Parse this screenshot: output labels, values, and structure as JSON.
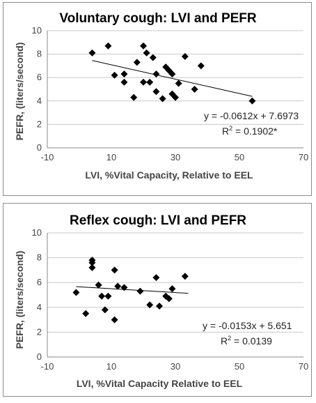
{
  "chart_data": [
    {
      "type": "scatter",
      "title": "Voluntary cough: LVI and PEFR",
      "xlabel": "LVI, %Vital Capacity, Relative to EEL",
      "ylabel": "PEFR, (liters/second)",
      "xlim": [
        -10,
        70
      ],
      "ylim": [
        0,
        10
      ],
      "xticks": [
        "-10",
        "10",
        "30",
        "50",
        "70"
      ],
      "yticks": [
        "0",
        "2",
        "4",
        "6",
        "8",
        "10"
      ],
      "grid": "horizontal",
      "equation": "y = -0.0612x + 7.6973",
      "r2_prefix": "R",
      "r2_sup": "2",
      "r2_value": " = 0.1902*",
      "trendline": {
        "slope": -0.0612,
        "intercept": 7.6973,
        "x_range": [
          4,
          54
        ]
      },
      "points": [
        {
          "x": 4,
          "y": 8.1
        },
        {
          "x": 9,
          "y": 8.7
        },
        {
          "x": 11,
          "y": 6.2
        },
        {
          "x": 14,
          "y": 6.3
        },
        {
          "x": 14,
          "y": 5.6
        },
        {
          "x": 17,
          "y": 4.3
        },
        {
          "x": 18,
          "y": 7.3
        },
        {
          "x": 20,
          "y": 8.7
        },
        {
          "x": 21,
          "y": 8.1
        },
        {
          "x": 20,
          "y": 5.6
        },
        {
          "x": 22,
          "y": 5.6
        },
        {
          "x": 23,
          "y": 7.7
        },
        {
          "x": 24,
          "y": 6.3
        },
        {
          "x": 24,
          "y": 4.8
        },
        {
          "x": 26,
          "y": 4.2
        },
        {
          "x": 27,
          "y": 6.9
        },
        {
          "x": 28,
          "y": 6.6
        },
        {
          "x": 29,
          "y": 6.3
        },
        {
          "x": 29,
          "y": 4.6
        },
        {
          "x": 30,
          "y": 4.3
        },
        {
          "x": 31,
          "y": 5.5
        },
        {
          "x": 33,
          "y": 7.8
        },
        {
          "x": 36,
          "y": 5.0
        },
        {
          "x": 38,
          "y": 7.0
        },
        {
          "x": 54,
          "y": 4.0
        }
      ]
    },
    {
      "type": "scatter",
      "title": "Reflex cough: LVI and PEFR",
      "xlabel": "LVI, %Vital Capacity Relative to EEL",
      "ylabel": "PEFR, (liters/second)",
      "xlim": [
        -10,
        70
      ],
      "ylim": [
        0,
        10
      ],
      "xticks": [
        "-10",
        "10",
        "30",
        "50",
        "70"
      ],
      "yticks": [
        "0",
        "2",
        "4",
        "6",
        "8",
        "10"
      ],
      "grid": "horizontal",
      "equation": "y = -0.0153x + 5.651",
      "r2_prefix": "R",
      "r2_sup": "2",
      "r2_value": " = 0.0139",
      "trendline": {
        "slope": -0.0153,
        "intercept": 5.651,
        "x_range": [
          -1,
          34
        ]
      },
      "points": [
        {
          "x": -1,
          "y": 5.2
        },
        {
          "x": 2,
          "y": 3.5
        },
        {
          "x": 4,
          "y": 7.8
        },
        {
          "x": 4,
          "y": 7.6
        },
        {
          "x": 4,
          "y": 7.2
        },
        {
          "x": 6,
          "y": 5.8
        },
        {
          "x": 7,
          "y": 4.9
        },
        {
          "x": 8,
          "y": 3.8
        },
        {
          "x": 9,
          "y": 4.9
        },
        {
          "x": 11,
          "y": 7.0
        },
        {
          "x": 11,
          "y": 3.0
        },
        {
          "x": 12,
          "y": 5.7
        },
        {
          "x": 14,
          "y": 5.6
        },
        {
          "x": 19,
          "y": 5.3
        },
        {
          "x": 22,
          "y": 4.2
        },
        {
          "x": 24,
          "y": 6.4
        },
        {
          "x": 25,
          "y": 4.1
        },
        {
          "x": 27,
          "y": 4.9
        },
        {
          "x": 29,
          "y": 5.5
        },
        {
          "x": 28,
          "y": 4.7
        },
        {
          "x": 33,
          "y": 6.5
        }
      ]
    }
  ]
}
